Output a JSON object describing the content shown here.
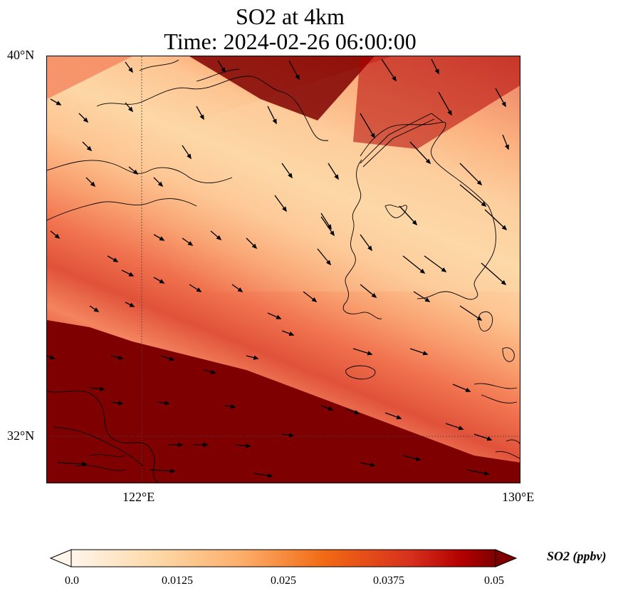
{
  "title_line1": "SO2 at 4km",
  "title_line2": "Time: 2024-02-26 06:00:00",
  "lat_labels": [
    "40°N",
    "32°N"
  ],
  "lon_labels": [
    "122°E",
    "130°E"
  ],
  "colorbar": {
    "label": "SO2 (ppbv)",
    "ticks": [
      "0.0",
      "0.0125",
      "0.025",
      "0.0375",
      "0.05"
    ],
    "colors": [
      "#fff5eb",
      "#fdd9a8",
      "#fdae6b",
      "#f16913",
      "#d7301f",
      "#b30000",
      "#7f0000"
    ]
  },
  "map": {
    "extent_lon": [
      120,
      130
    ],
    "extent_lat": [
      31,
      40
    ],
    "gridline_lon": 122,
    "gridline_lat": 32,
    "field_colors": {
      "high": "#7f0000",
      "mid_high": "#d7301f",
      "mid": "#f4845f",
      "low": "#fdc592",
      "lowest": "#fdd9aa"
    }
  }
}
